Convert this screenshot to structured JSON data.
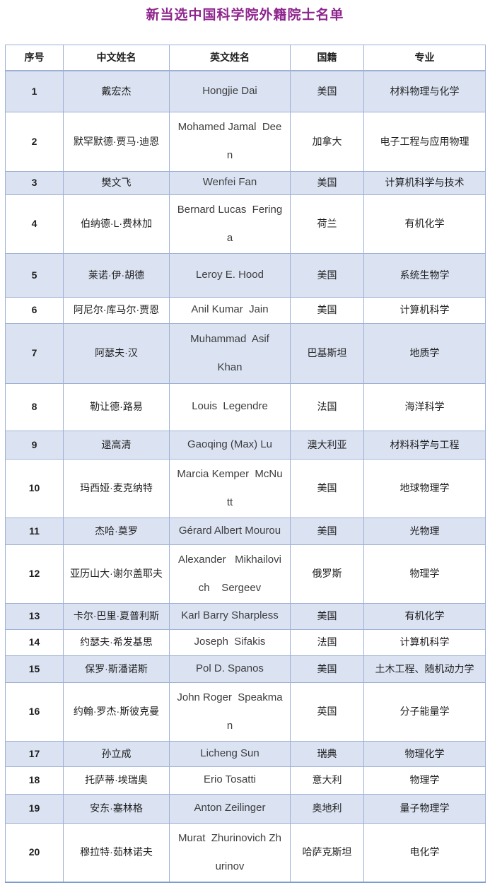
{
  "title": "新当选中国科学院外籍院士名单",
  "colors": {
    "title": "#8e258d",
    "row_shade": "#dbe3f3",
    "border": "#9db1d4",
    "outer_border": "#7b9ccf"
  },
  "table": {
    "headers": [
      "序号",
      "中文姓名",
      "英文姓名",
      "国籍",
      "专业"
    ],
    "rows": [
      {
        "no": "1",
        "cn": "戴宏杰",
        "en": "Hongjie Dai",
        "nat": "美国",
        "spec": "材料物理与化学"
      },
      {
        "no": "2",
        "cn": "默罕默德·贾马·迪恩",
        "en": "Mohamed Jamal  Dee\nn",
        "nat": "加拿大",
        "spec": "电子工程与应用物理"
      },
      {
        "no": "3",
        "cn": "樊文飞",
        "en": "Wenfei Fan",
        "nat": "美国",
        "spec": "计算机科学与技术"
      },
      {
        "no": "4",
        "cn": "伯纳德·L·费林加",
        "en": "Bernard Lucas  Fering\na",
        "nat": "荷兰",
        "spec": "有机化学"
      },
      {
        "no": "5",
        "cn": "莱诺·伊·胡德",
        "en": "Leroy E. Hood",
        "nat": "美国",
        "spec": "系统生物学"
      },
      {
        "no": "6",
        "cn": "阿尼尔·库马尔·贾恩",
        "en": "Anil Kumar  Jain",
        "nat": "美国",
        "spec": "计算机科学"
      },
      {
        "no": "7",
        "cn": "阿瑟夫·汉",
        "en": "Muhammad  Asif\nKhan",
        "nat": "巴基斯坦",
        "spec": "地质学"
      },
      {
        "no": "8",
        "cn": "勒让德·路易",
        "en": "Louis  Legendre",
        "nat": "法国",
        "spec": "海洋科学"
      },
      {
        "no": "9",
        "cn": "逯高清",
        "en": "Gaoqing (Max) Lu",
        "nat": "澳大利亚",
        "spec": "材料科学与工程"
      },
      {
        "no": "10",
        "cn": "玛西娅·麦克纳特",
        "en": "Marcia Kemper  McNu\ntt",
        "nat": "美国",
        "spec": "地球物理学"
      },
      {
        "no": "11",
        "cn": "杰哈·莫罗",
        "en": "Gérard Albert Mourou",
        "nat": "美国",
        "spec": "光物理"
      },
      {
        "no": "12",
        "cn": "亚历山大·谢尔盖耶夫",
        "en": "Alexander   Mikhailovi\nch    Sergeev",
        "nat": "俄罗斯",
        "spec": "物理学"
      },
      {
        "no": "13",
        "cn": "卡尔·巴里·夏普利斯",
        "en": "Karl Barry Sharpless",
        "nat": "美国",
        "spec": "有机化学"
      },
      {
        "no": "14",
        "cn": "约瑟夫·希发基思",
        "en": "Joseph  Sifakis",
        "nat": "法国",
        "spec": "计算机科学"
      },
      {
        "no": "15",
        "cn": "保罗·斯潘诺斯",
        "en": "Pol D. Spanos",
        "nat": "美国",
        "spec": "土木工程、随机动力学"
      },
      {
        "no": "16",
        "cn": "约翰·罗杰·斯彼克曼",
        "en": "John Roger  Speakma\nn",
        "nat": "英国",
        "spec": "分子能量学"
      },
      {
        "no": "17",
        "cn": "孙立成",
        "en": "Licheng Sun",
        "nat": "瑞典",
        "spec": "物理化学"
      },
      {
        "no": "18",
        "cn": "托萨蒂·埃瑞奥",
        "en": "Erio Tosatti",
        "nat": "意大利",
        "spec": "物理学"
      },
      {
        "no": "19",
        "cn": "安东·塞林格",
        "en": "Anton Zeilinger",
        "nat": "奥地利",
        "spec": "量子物理学"
      },
      {
        "no": "20",
        "cn": "穆拉特·茹林诺夫",
        "en": "Murat  Zhurinovich Zh\nurinov",
        "nat": "哈萨克斯坦",
        "spec": "电化学"
      }
    ]
  }
}
